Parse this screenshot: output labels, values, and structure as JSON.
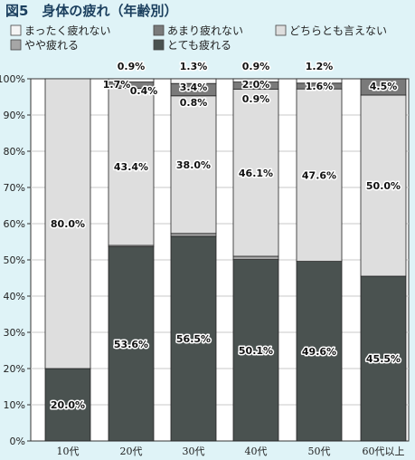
{
  "chart_data": {
    "type": "bar",
    "stacked": true,
    "title": "図5　身体の疲れ（年齢別）",
    "categories": [
      "10代",
      "20代",
      "30代",
      "40代",
      "50代",
      "60代以上"
    ],
    "ylim": [
      0,
      100
    ],
    "yticks": [
      "0%",
      "10%",
      "20%",
      "30%",
      "40%",
      "50%",
      "60%",
      "70%",
      "80%",
      "90%",
      "100%"
    ],
    "legend_position": "top",
    "series": [
      {
        "name": "とても疲れる",
        "color": "#4a5250",
        "values": [
          20.0,
          53.6,
          56.5,
          50.1,
          49.6,
          45.5
        ],
        "labels": [
          "20.0%",
          "53.6%",
          "56.5%",
          "50.1%",
          "49.6%",
          "45.5%"
        ]
      },
      {
        "name": "やや疲れる",
        "color": "#a6a6a6",
        "values": [
          0,
          0.4,
          0.8,
          0.9,
          0,
          0
        ],
        "labels": [
          "",
          "0.4%",
          "0.8%",
          "0.9%",
          "",
          ""
        ]
      },
      {
        "name": "どちらとも言えない",
        "color": "#dedede",
        "values": [
          80.0,
          43.4,
          38.0,
          46.1,
          47.6,
          50.0
        ],
        "labels": [
          "80.0%",
          "43.4%",
          "38.0%",
          "46.1%",
          "47.6%",
          "50.0%"
        ]
      },
      {
        "name": "あまり疲れない",
        "color": "#7a7a7a",
        "values": [
          0,
          1.7,
          3.4,
          2.0,
          1.6,
          4.5
        ],
        "labels": [
          "",
          "1.7%",
          "3.4%",
          "2.0%",
          "1.6%",
          "4.5%"
        ]
      },
      {
        "name": "まったく疲れない",
        "color": "#f4f4f4",
        "values": [
          0,
          0.9,
          1.3,
          0.9,
          1.2,
          0
        ],
        "labels": [
          "",
          "0.9%",
          "1.3%",
          "0.9%",
          "1.2%",
          ""
        ]
      }
    ],
    "legend_order": [
      "まったく疲れない",
      "あまり疲れない",
      "どちらとも言えない",
      "やや疲れる",
      "とても疲れる"
    ]
  }
}
